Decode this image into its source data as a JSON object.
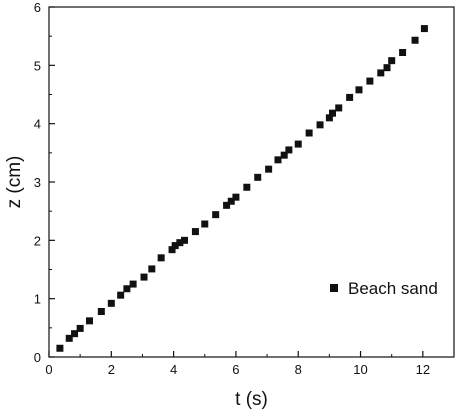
{
  "chart_data": {
    "type": "scatter",
    "title": "",
    "xlabel": "t (s)",
    "ylabel": "z (cm)",
    "xlim": [
      0,
      13
    ],
    "ylim": [
      0,
      6
    ],
    "x_ticks": [
      0,
      2,
      4,
      6,
      8,
      10,
      12
    ],
    "y_ticks": [
      0,
      1,
      2,
      3,
      4,
      5,
      6
    ],
    "x_tick_labels": [
      "0",
      "2",
      "4",
      "6",
      "8",
      "10",
      "12"
    ],
    "y_tick_labels": [
      "0",
      "1",
      "2",
      "3",
      "4",
      "5",
      "6"
    ],
    "grid": false,
    "legend_position": "bottom-right",
    "marker": "square",
    "marker_color": "#111111",
    "series": [
      {
        "name": "Beach sand",
        "x": [
          0.35,
          0.65,
          0.82,
          1.0,
          1.3,
          1.68,
          2.0,
          2.3,
          2.5,
          2.7,
          3.05,
          3.3,
          3.6,
          3.95,
          4.05,
          4.2,
          4.35,
          4.7,
          5.0,
          5.35,
          5.7,
          5.85,
          6.0,
          6.35,
          6.7,
          7.05,
          7.35,
          7.55,
          7.7,
          8.0,
          8.35,
          8.7,
          9.0,
          9.1,
          9.3,
          9.65,
          9.95,
          10.3,
          10.65,
          10.85,
          11.0,
          11.35,
          11.75,
          12.05
        ],
        "y": [
          0.15,
          0.32,
          0.4,
          0.49,
          0.62,
          0.78,
          0.92,
          1.06,
          1.17,
          1.25,
          1.37,
          1.51,
          1.7,
          1.84,
          1.91,
          1.96,
          2.0,
          2.15,
          2.28,
          2.44,
          2.6,
          2.67,
          2.74,
          2.91,
          3.08,
          3.22,
          3.38,
          3.46,
          3.55,
          3.65,
          3.84,
          3.98,
          4.1,
          4.18,
          4.27,
          4.45,
          4.58,
          4.73,
          4.87,
          4.96,
          5.08,
          5.22,
          5.43,
          5.63
        ]
      }
    ]
  }
}
